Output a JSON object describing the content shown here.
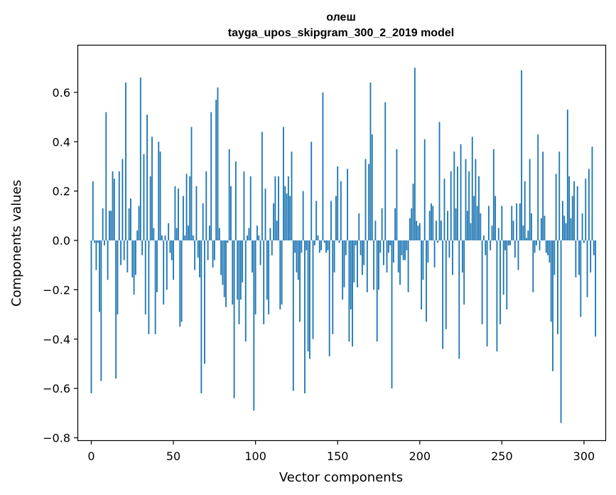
{
  "chart_data": {
    "type": "bar",
    "title": "олеш",
    "subtitle": "tayga_upos_skipgram_300_2_2019 model",
    "xlabel": "Vector components",
    "ylabel": "Components values",
    "xlim": [
      -8,
      313
    ],
    "ylim": [
      -0.81,
      0.79
    ],
    "xticks": [
      0,
      50,
      100,
      150,
      200,
      250,
      300
    ],
    "yticks": [
      -0.8,
      -0.6,
      -0.4,
      -0.2,
      0.0,
      0.2,
      0.4,
      0.6
    ],
    "ytick_labels": [
      "−0.8",
      "−0.6",
      "−0.4",
      "−0.2",
      "0.0",
      "0.2",
      "0.4",
      "0.6"
    ],
    "bar_color": "#1f77b4",
    "series": [
      {
        "name": "олеш",
        "x_start": 0,
        "values": [
          -0.62,
          0.24,
          -0.01,
          -0.12,
          -0.01,
          -0.29,
          -0.57,
          0.13,
          -0.02,
          0.52,
          -0.16,
          0.12,
          0.12,
          0.28,
          0.25,
          -0.56,
          -0.3,
          0.28,
          -0.1,
          0.33,
          -0.08,
          0.64,
          -0.13,
          0.13,
          0.17,
          -0.15,
          -0.22,
          -0.14,
          0.04,
          0.14,
          0.66,
          -0.06,
          0.35,
          -0.3,
          0.51,
          -0.38,
          0.26,
          0.42,
          0.05,
          -0.38,
          -0.21,
          0.4,
          0.36,
          0.02,
          -0.26,
          0.02,
          -0.2,
          0.07,
          -0.05,
          -0.08,
          -0.16,
          0.22,
          0.05,
          0.21,
          -0.35,
          -0.33,
          0.18,
          0.02,
          0.27,
          0.06,
          0.26,
          0.46,
          0.02,
          -0.12,
          0.22,
          -0.07,
          -0.15,
          -0.62,
          0.15,
          -0.5,
          0.28,
          -0.08,
          0.06,
          0.52,
          -0.11,
          -0.08,
          0.57,
          0.62,
          0.05,
          -0.14,
          -0.18,
          -0.23,
          -0.27,
          -0.01,
          0.37,
          0.22,
          -0.26,
          -0.64,
          0.32,
          -0.24,
          -0.34,
          -0.24,
          -0.17,
          0.28,
          -0.41,
          0.02,
          0.05,
          0.26,
          -0.13,
          -0.69,
          -0.3,
          0.06,
          0.02,
          -0.1,
          0.44,
          -0.34,
          0.21,
          -0.24,
          -0.3,
          0.05,
          -0.06,
          0.15,
          0.26,
          0.08,
          0.26,
          -0.28,
          -0.26,
          0.46,
          0.22,
          0.19,
          0.26,
          0.18,
          0.36,
          -0.61,
          -0.05,
          -0.13,
          -0.16,
          -0.33,
          -0.05,
          0.2,
          -0.62,
          -0.04,
          -0.45,
          -0.48,
          0.4,
          -0.4,
          -0.02,
          0.16,
          0.02,
          -0.05,
          -0.04,
          0.6,
          -0.01,
          -0.05,
          -0.04,
          -0.47,
          0.16,
          -0.38,
          -0.13,
          0.18,
          0.3,
          -0.01,
          0.24,
          -0.24,
          -0.19,
          -0.06,
          0.29,
          -0.41,
          -0.28,
          -0.43,
          -0.17,
          -0.02,
          -0.19,
          0.11,
          -0.06,
          -0.14,
          -0.1,
          0.33,
          -0.21,
          0.31,
          0.64,
          0.43,
          -0.2,
          0.08,
          -0.41,
          -0.2,
          -0.05,
          0.13,
          -0.1,
          0.56,
          -0.13,
          -0.05,
          -0.02,
          -0.6,
          -0.09,
          0.13,
          0.37,
          -0.13,
          -0.18,
          -0.06,
          -0.08,
          -0.08,
          -0.04,
          -0.21,
          0.09,
          0.13,
          0.23,
          0.7,
          0.08,
          0.06,
          0.07,
          -0.28,
          -0.16,
          0.41,
          -0.33,
          -0.09,
          0.12,
          0.15,
          0.14,
          -0.11,
          0.08,
          -0.01,
          0.48,
          0.08,
          -0.44,
          0.25,
          -0.36,
          0.12,
          -0.07,
          0.28,
          -0.14,
          0.36,
          0.13,
          0.3,
          -0.48,
          0.39,
          -0.13,
          -0.26,
          0.33,
          0.12,
          0.28,
          0.07,
          0.42,
          0.18,
          0.33,
          0.14,
          0.26,
          0.11,
          -0.34,
          0.02,
          -0.06,
          -0.43,
          0.14,
          -0.04,
          0.06,
          0.37,
          0.18,
          -0.45,
          0.05,
          -0.34,
          0.14,
          -0.22,
          -0.04,
          -0.28,
          -0.02,
          -0.02,
          0.14,
          0.08,
          -0.07,
          0.15,
          -0.12,
          0.15,
          0.69,
          0.06,
          0.24,
          0.01,
          0.04,
          0.33,
          0.11,
          -0.21,
          -0.05,
          -0.02,
          0.43,
          -0.04,
          0.09,
          0.36,
          0.1,
          -0.05,
          -0.06,
          -0.09,
          -0.33,
          -0.53,
          -0.14,
          0.27,
          -0.38,
          0.36,
          -0.74,
          0.16,
          0.1,
          0.07,
          0.53,
          0.26,
          0.09,
          0.18,
          0.24,
          -0.15,
          0.22,
          -0.14,
          -0.31,
          0.11,
          -0.01,
          0.25,
          -0.23,
          0.29,
          -0.13,
          0.38,
          -0.06,
          -0.39
        ]
      }
    ]
  }
}
